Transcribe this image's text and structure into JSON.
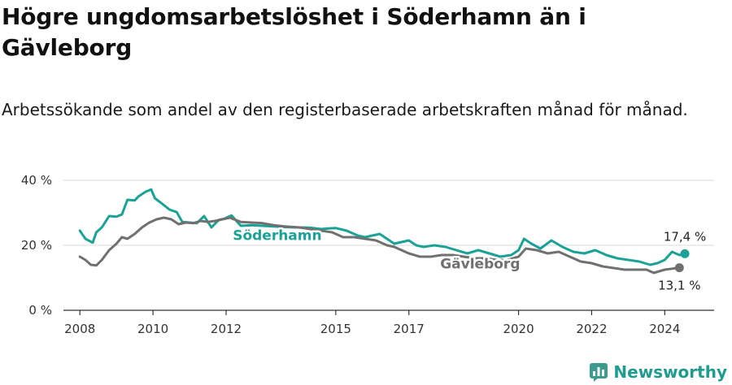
{
  "title": "Högre ungdomsarbetslöshet i Söderhamn än i Gävleborg",
  "subtitle": "Arbetssökande som andel av den registerbaserade arbetskraften månad för månad.",
  "brand": {
    "name": "Newsworthy",
    "icon": "newsworthy-logo-icon",
    "color": "#3c9b8f"
  },
  "chart_data": {
    "type": "line",
    "x_unit": "year",
    "xlim": [
      2007.55,
      2025.35
    ],
    "ylim": [
      0,
      40
    ],
    "y_ticks": [
      0,
      20,
      40
    ],
    "y_tick_labels": [
      "0 %",
      "20 %",
      "40 %"
    ],
    "x_ticks": [
      2008,
      2010,
      2012,
      2015,
      2017,
      2020,
      2022,
      2024
    ],
    "x_tick_labels": [
      "2008",
      "2010",
      "2012",
      "2015",
      "2017",
      "2020",
      "2022",
      "2024"
    ],
    "grid": true,
    "series": [
      {
        "name": "Söderhamn",
        "color": "#1aa296",
        "end_label": "17,4 %",
        "x": [
          2008.0,
          2008.15,
          2008.35,
          2008.45,
          2008.6,
          2008.8,
          2009.0,
          2009.15,
          2009.3,
          2009.5,
          2009.6,
          2009.8,
          2009.95,
          2010.05,
          2010.25,
          2010.45,
          2010.65,
          2010.8,
          2011.0,
          2011.2,
          2011.4,
          2011.6,
          2011.8,
          2011.95,
          2012.15,
          2012.4,
          2012.7,
          2013.0,
          2013.3,
          2013.6,
          2014.0,
          2014.3,
          2014.6,
          2014.8,
          2015.0,
          2015.3,
          2015.6,
          2015.8,
          2016.0,
          2016.2,
          2016.4,
          2016.6,
          2016.8,
          2017.0,
          2017.2,
          2017.4,
          2017.7,
          2018.0,
          2018.3,
          2018.6,
          2018.9,
          2019.2,
          2019.5,
          2019.8,
          2020.0,
          2020.15,
          2020.35,
          2020.6,
          2020.9,
          2021.2,
          2021.5,
          2021.8,
          2022.1,
          2022.4,
          2022.7,
          2023.0,
          2023.3,
          2023.6,
          2023.8,
          2024.0,
          2024.2,
          2024.4,
          2024.55
        ],
        "values": [
          24.5,
          22.0,
          20.8,
          24.0,
          25.5,
          29.0,
          28.8,
          29.5,
          34.0,
          33.8,
          35.0,
          36.5,
          37.2,
          34.5,
          32.8,
          31.0,
          30.2,
          27.2,
          27.0,
          26.8,
          29.0,
          25.5,
          27.8,
          28.2,
          29.2,
          26.0,
          26.2,
          26.0,
          25.8,
          25.6,
          25.5,
          25.4,
          25.0,
          25.2,
          25.3,
          24.5,
          23.0,
          22.5,
          23.0,
          23.5,
          22.0,
          20.5,
          21.0,
          21.5,
          20.0,
          19.5,
          20.0,
          19.5,
          18.5,
          17.5,
          18.5,
          17.5,
          16.5,
          17.0,
          18.5,
          22.0,
          20.5,
          19.0,
          21.5,
          19.5,
          18.0,
          17.5,
          18.5,
          17.0,
          16.0,
          15.5,
          15.0,
          14.0,
          14.5,
          15.5,
          18.0,
          17.0,
          17.4
        ]
      },
      {
        "name": "Gävleborg",
        "color": "#707070",
        "end_label": "13,1 %",
        "x": [
          2008.0,
          2008.15,
          2008.3,
          2008.45,
          2008.6,
          2008.8,
          2009.0,
          2009.15,
          2009.3,
          2009.5,
          2009.7,
          2009.9,
          2010.1,
          2010.3,
          2010.5,
          2010.7,
          2010.9,
          2011.1,
          2011.3,
          2011.5,
          2011.7,
          2011.9,
          2012.1,
          2012.4,
          2012.7,
          2013.0,
          2013.3,
          2013.6,
          2014.0,
          2014.3,
          2014.6,
          2014.9,
          2015.2,
          2015.5,
          2015.8,
          2016.1,
          2016.4,
          2016.6,
          2016.8,
          2017.0,
          2017.3,
          2017.6,
          2017.9,
          2018.2,
          2018.5,
          2018.8,
          2019.1,
          2019.4,
          2019.7,
          2020.0,
          2020.2,
          2020.5,
          2020.8,
          2021.1,
          2021.4,
          2021.7,
          2022.0,
          2022.3,
          2022.6,
          2022.9,
          2023.2,
          2023.5,
          2023.7,
          2024.0,
          2024.2,
          2024.4
        ],
        "values": [
          16.5,
          15.5,
          14.0,
          13.8,
          15.5,
          18.5,
          20.5,
          22.5,
          22.0,
          23.5,
          25.5,
          27.0,
          28.0,
          28.5,
          28.0,
          26.5,
          27.0,
          26.8,
          27.5,
          27.2,
          27.5,
          28.0,
          28.5,
          27.2,
          27.0,
          26.8,
          26.2,
          25.8,
          25.5,
          25.0,
          24.5,
          24.0,
          22.5,
          22.5,
          22.0,
          21.5,
          20.0,
          19.5,
          18.5,
          17.5,
          16.5,
          16.5,
          17.0,
          17.0,
          16.5,
          16.0,
          16.0,
          15.5,
          15.5,
          16.5,
          19.0,
          18.5,
          17.5,
          18.0,
          16.5,
          15.0,
          14.5,
          13.5,
          13.0,
          12.5,
          12.5,
          12.5,
          11.5,
          12.5,
          12.8,
          13.1
        ]
      }
    ]
  }
}
